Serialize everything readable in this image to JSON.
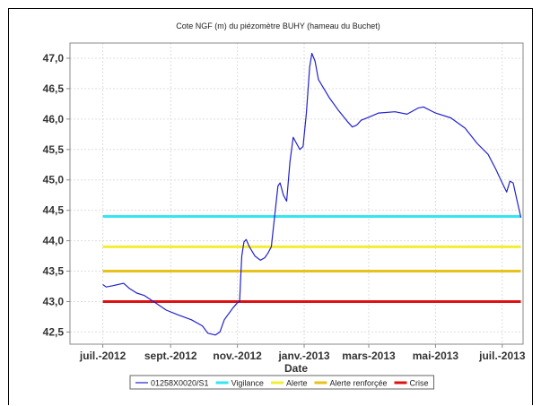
{
  "chart_data": {
    "type": "line",
    "title": "Cote NGF (m) du piézomètre BUHY (hameau du Buchet)",
    "xlabel": "Date",
    "ylabel": "",
    "x_ticks": [
      "juil.-2012",
      "sept.-2012",
      "nov.-2012",
      "janv.-2013",
      "mars-2013",
      "mai-2013",
      "juil.-2013"
    ],
    "y_ticks": [
      "42,5",
      "43,0",
      "43,5",
      "44,0",
      "44,5",
      "45,0",
      "45,5",
      "46,0",
      "46,5",
      "47,0"
    ],
    "xlim": [
      "2012-06-01",
      "2013-07-20"
    ],
    "ylim": [
      42.3,
      47.25
    ],
    "grid": true,
    "legend_position": "bottom",
    "series": [
      {
        "name": "01258X0020/S1",
        "color": "#2222cc",
        "points": [
          [
            "2012-07-01",
            43.28
          ],
          [
            "2012-07-04",
            43.24
          ],
          [
            "2012-07-10",
            43.26
          ],
          [
            "2012-07-20",
            43.3
          ],
          [
            "2012-07-25",
            43.22
          ],
          [
            "2012-08-01",
            43.14
          ],
          [
            "2012-08-08",
            43.1
          ],
          [
            "2012-08-18",
            42.98
          ],
          [
            "2012-08-28",
            42.86
          ],
          [
            "2012-09-08",
            42.78
          ],
          [
            "2012-09-20",
            42.7
          ],
          [
            "2012-09-30",
            42.6
          ],
          [
            "2012-10-05",
            42.48
          ],
          [
            "2012-10-12",
            42.45
          ],
          [
            "2012-10-16",
            42.5
          ],
          [
            "2012-10-20",
            42.7
          ],
          [
            "2012-10-28",
            42.9
          ],
          [
            "2012-11-01",
            42.98
          ],
          [
            "2012-11-03",
            43.0
          ],
          [
            "2012-11-04",
            43.4
          ],
          [
            "2012-11-05",
            43.75
          ],
          [
            "2012-11-07",
            43.98
          ],
          [
            "2012-11-09",
            44.02
          ],
          [
            "2012-11-12",
            43.9
          ],
          [
            "2012-11-17",
            43.75
          ],
          [
            "2012-11-22",
            43.68
          ],
          [
            "2012-11-26",
            43.72
          ],
          [
            "2012-11-29",
            43.8
          ],
          [
            "2012-12-02",
            43.9
          ],
          [
            "2012-12-05",
            44.4
          ],
          [
            "2012-12-08",
            44.9
          ],
          [
            "2012-12-10",
            44.95
          ],
          [
            "2012-12-13",
            44.75
          ],
          [
            "2012-12-16",
            44.65
          ],
          [
            "2012-12-19",
            45.3
          ],
          [
            "2012-12-22",
            45.7
          ],
          [
            "2012-12-25",
            45.6
          ],
          [
            "2012-12-28",
            45.5
          ],
          [
            "2012-12-31",
            45.55
          ],
          [
            "2013-01-03",
            46.1
          ],
          [
            "2013-01-06",
            46.85
          ],
          [
            "2013-01-08",
            47.08
          ],
          [
            "2013-01-11",
            46.95
          ],
          [
            "2013-01-14",
            46.65
          ],
          [
            "2013-01-19",
            46.5
          ],
          [
            "2013-01-24",
            46.35
          ],
          [
            "2013-02-01",
            46.15
          ],
          [
            "2013-02-10",
            45.95
          ],
          [
            "2013-02-14",
            45.87
          ],
          [
            "2013-02-18",
            45.9
          ],
          [
            "2013-02-22",
            45.98
          ],
          [
            "2013-03-01",
            46.03
          ],
          [
            "2013-03-10",
            46.1
          ],
          [
            "2013-03-25",
            46.12
          ],
          [
            "2013-04-05",
            46.08
          ],
          [
            "2013-04-15",
            46.18
          ],
          [
            "2013-04-20",
            46.2
          ],
          [
            "2013-05-01",
            46.1
          ],
          [
            "2013-05-15",
            46.02
          ],
          [
            "2013-05-28",
            45.85
          ],
          [
            "2013-06-08",
            45.6
          ],
          [
            "2013-06-18",
            45.42
          ],
          [
            "2013-06-25",
            45.18
          ],
          [
            "2013-07-01",
            44.95
          ],
          [
            "2013-07-05",
            44.8
          ],
          [
            "2013-07-08",
            44.98
          ],
          [
            "2013-07-11",
            44.95
          ],
          [
            "2013-07-14",
            44.7
          ],
          [
            "2013-07-18",
            44.38
          ]
        ]
      },
      {
        "name": "Vigilance",
        "color": "#33e6f2",
        "value": 44.4
      },
      {
        "name": "Alerte",
        "color": "#f2ee33",
        "value": 43.9
      },
      {
        "name": "Alerte renforçée",
        "color": "#e6c21a",
        "value": 43.5
      },
      {
        "name": "Crise",
        "color": "#dd1111",
        "value": 43.0
      }
    ]
  }
}
